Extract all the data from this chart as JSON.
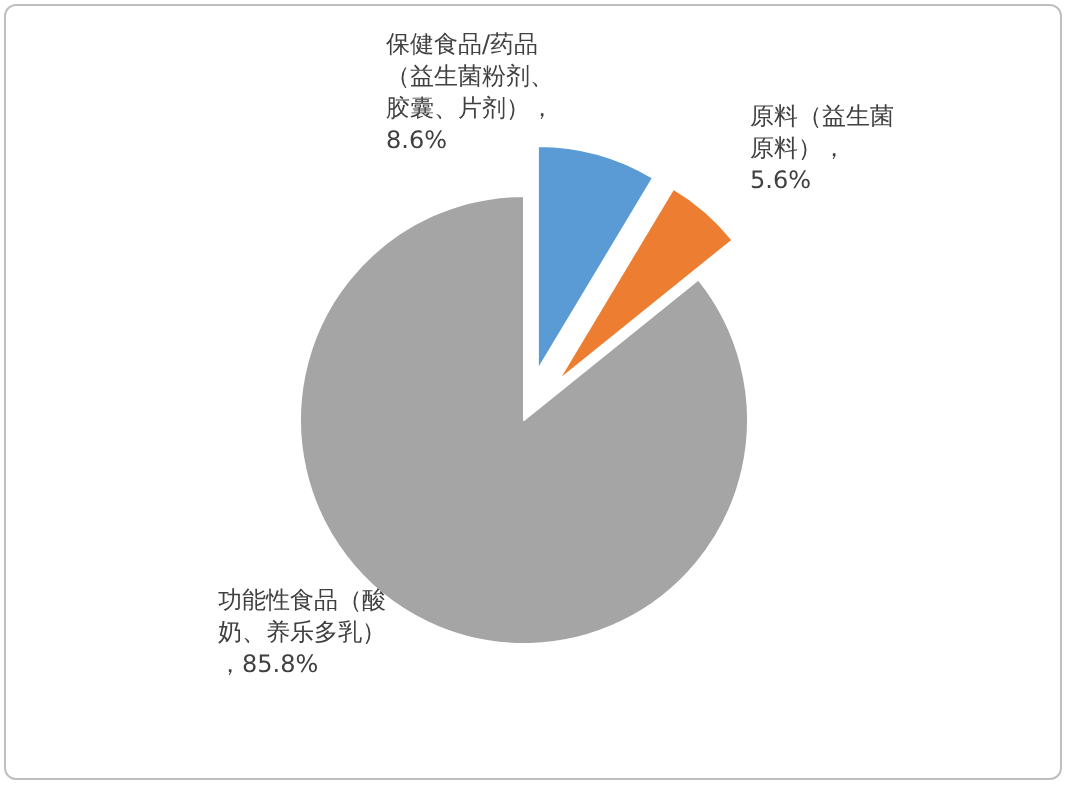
{
  "chart_data": {
    "type": "pie",
    "categories": [
      "保健食品/药品（益生菌粉剂、胶囊、片剂）",
      "原料（益生菌原料）",
      "功能性食品（酸奶、养乐多乳）"
    ],
    "values": [
      8.6,
      5.6,
      85.8
    ],
    "colors": [
      "#5b9bd5",
      "#ed7d31",
      "#a5a5a5"
    ],
    "value_labels": [
      "，8.6%",
      "，5.6%",
      "，85.8%"
    ]
  }
}
